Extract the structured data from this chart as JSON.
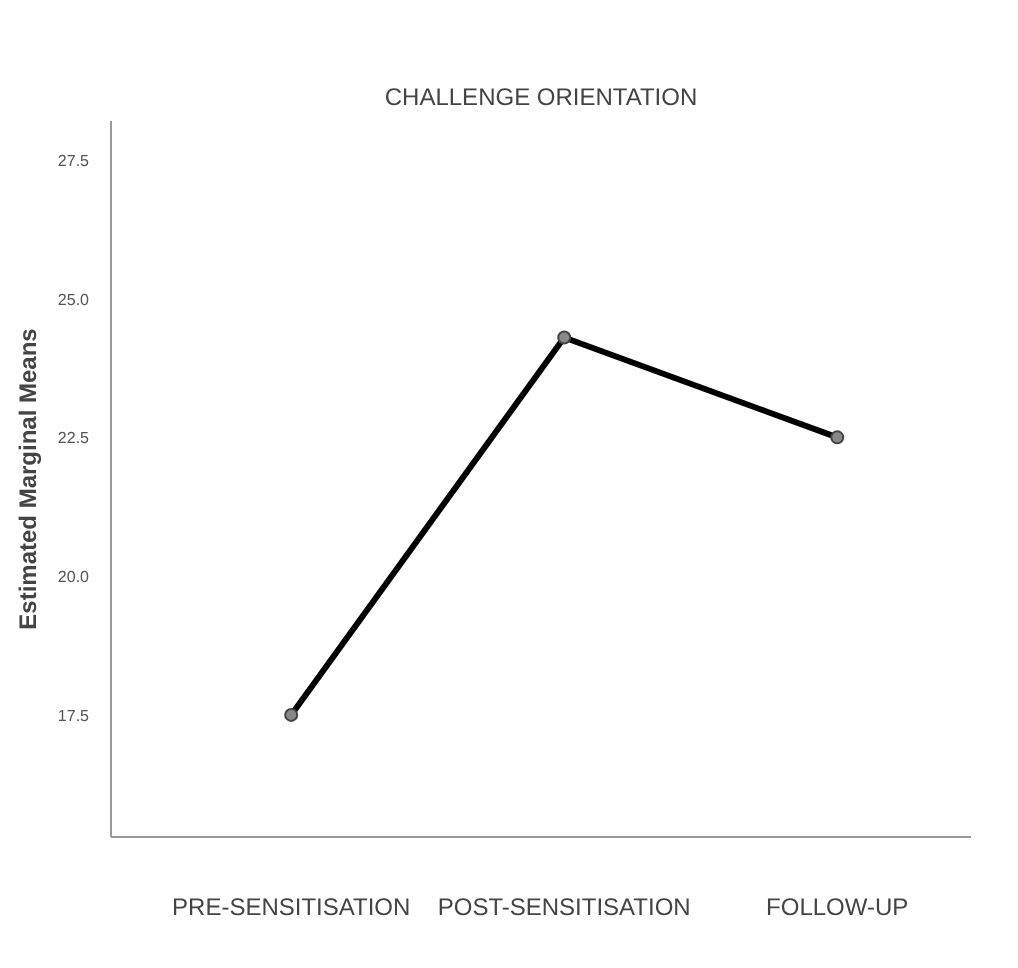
{
  "chart_data": {
    "type": "line",
    "title": "CHALLENGE ORIENTATION",
    "ylabel": "Estimated Marginal Means",
    "categories": [
      "PRE-SENSITISATION",
      "POST-SENSITISATION",
      "FOLLOW-UP"
    ],
    "series": [
      {
        "color": "#000000",
        "values": [
          17.5,
          24.3,
          22.5
        ]
      }
    ],
    "ylim": [
      15.3,
      28.2
    ],
    "yticks": [
      {
        "value": 17.5,
        "label": "17.5"
      },
      {
        "value": 20,
        "label": "20.0"
      },
      {
        "value": 22.5,
        "label": "22.5"
      },
      {
        "value": 25,
        "label": "25.0"
      },
      {
        "value": 27.5,
        "label": "27.5"
      }
    ],
    "marker": "circle",
    "grid": false
  }
}
